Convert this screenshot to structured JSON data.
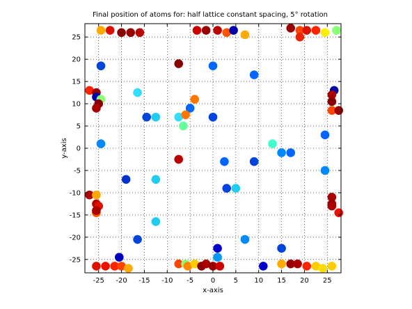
{
  "chart_data": {
    "type": "scatter",
    "title": "Final position of atoms for: half lattice constant spacing, 5° rotation",
    "xlabel": "x-axis",
    "ylabel": "y-axis",
    "xlim": [
      -28,
      28
    ],
    "ylim": [
      -28,
      28
    ],
    "x_ticks": [
      -25,
      -20,
      -15,
      -10,
      -5,
      0,
      5,
      10,
      15,
      20,
      25
    ],
    "y_ticks": [
      -25,
      -20,
      -15,
      -10,
      -5,
      0,
      5,
      10,
      15,
      20,
      25
    ],
    "x_tick_labels": [
      "-25",
      "-20",
      "-15",
      "-10",
      "-5",
      "0",
      "5",
      "10",
      "15",
      "20",
      "25"
    ],
    "y_tick_labels": [
      "-25",
      "-20",
      "-15",
      "-10",
      "-5",
      "0",
      "5",
      "10",
      "15",
      "20",
      "25"
    ],
    "grid": true,
    "grid_style": "dotted",
    "marker": "filled-circle",
    "colormap": "jet",
    "points": [
      {
        "x": -24.5,
        "y": 26.5,
        "color": "#ffaa00"
      },
      {
        "x": -22.5,
        "y": 26.5,
        "color": "#dd1100"
      },
      {
        "x": -20.0,
        "y": 26.0,
        "color": "#880000"
      },
      {
        "x": -18.0,
        "y": 26.0,
        "color": "#990000"
      },
      {
        "x": -16.0,
        "y": 26.0,
        "color": "#bb0000"
      },
      {
        "x": -3.5,
        "y": 26.5,
        "color": "#cc0000"
      },
      {
        "x": -1.5,
        "y": 26.5,
        "color": "#990000"
      },
      {
        "x": 1.0,
        "y": 26.5,
        "color": "#bb0000"
      },
      {
        "x": 3.0,
        "y": 26.0,
        "color": "#ff5500"
      },
      {
        "x": 4.5,
        "y": 26.5,
        "color": "#0000aa"
      },
      {
        "x": 7.0,
        "y": 25.5,
        "color": "#ffaa00"
      },
      {
        "x": 17.0,
        "y": 27.0,
        "color": "#990000"
      },
      {
        "x": 19.0,
        "y": 26.5,
        "color": "#ff4400"
      },
      {
        "x": 20.5,
        "y": 26.5,
        "color": "#dd1100"
      },
      {
        "x": 22.5,
        "y": 26.5,
        "color": "#ff2200"
      },
      {
        "x": 24.5,
        "y": 26.0,
        "color": "#ffee00"
      },
      {
        "x": 27.0,
        "y": 26.5,
        "color": "#88ff77"
      },
      {
        "x": 19.0,
        "y": 25.0,
        "color": "#ee2200"
      },
      {
        "x": -24.5,
        "y": 18.5,
        "color": "#0044dd"
      },
      {
        "x": -7.5,
        "y": 19.0,
        "color": "#880000"
      },
      {
        "x": 0.0,
        "y": 18.5,
        "color": "#0066ff"
      },
      {
        "x": 9.0,
        "y": 16.5,
        "color": "#0066ff"
      },
      {
        "x": -27.0,
        "y": 13.0,
        "color": "#ff2200"
      },
      {
        "x": -25.5,
        "y": 12.5,
        "color": "#990000"
      },
      {
        "x": -25.5,
        "y": 11.5,
        "color": "#0000aa"
      },
      {
        "x": -24.5,
        "y": 11.0,
        "color": "#88ff77"
      },
      {
        "x": -25.0,
        "y": 10.0,
        "color": "#880000"
      },
      {
        "x": -25.5,
        "y": 9.0,
        "color": "#aa0000"
      },
      {
        "x": -16.5,
        "y": 12.5,
        "color": "#33ddff"
      },
      {
        "x": -4.0,
        "y": 11.0,
        "color": "#ff7700"
      },
      {
        "x": -5.0,
        "y": 9.0,
        "color": "#0066ff"
      },
      {
        "x": -14.5,
        "y": 7.0,
        "color": "#0044dd"
      },
      {
        "x": -12.5,
        "y": 7.0,
        "color": "#22ccee"
      },
      {
        "x": -7.5,
        "y": 7.0,
        "color": "#33ddff"
      },
      {
        "x": -6.0,
        "y": 7.5,
        "color": "#ff7700"
      },
      {
        "x": -6.5,
        "y": 5.0,
        "color": "#66ff99"
      },
      {
        "x": 0.0,
        "y": 7.0,
        "color": "#0044dd"
      },
      {
        "x": 26.5,
        "y": 13.0,
        "color": "#0000aa"
      },
      {
        "x": 26.0,
        "y": 12.0,
        "color": "#aa0000"
      },
      {
        "x": 26.0,
        "y": 10.5,
        "color": "#880000"
      },
      {
        "x": 26.0,
        "y": 8.5,
        "color": "#ff4400"
      },
      {
        "x": 27.5,
        "y": 8.5,
        "color": "#990000"
      },
      {
        "x": -24.5,
        "y": 1.0,
        "color": "#0088ff"
      },
      {
        "x": 13.0,
        "y": 1.0,
        "color": "#44ffcc"
      },
      {
        "x": 15.0,
        "y": -1.0,
        "color": "#0088ff"
      },
      {
        "x": 17.0,
        "y": -1.0,
        "color": "#0066ff"
      },
      {
        "x": 24.5,
        "y": 3.0,
        "color": "#0066ff"
      },
      {
        "x": -7.5,
        "y": -2.5,
        "color": "#bb0000"
      },
      {
        "x": 2.5,
        "y": -3.0,
        "color": "#0066ff"
      },
      {
        "x": 9.0,
        "y": -3.0,
        "color": "#0044dd"
      },
      {
        "x": 24.5,
        "y": -5.0,
        "color": "#0088ff"
      },
      {
        "x": -19.0,
        "y": -7.0,
        "color": "#0033cc"
      },
      {
        "x": -12.5,
        "y": -7.0,
        "color": "#22ccee"
      },
      {
        "x": 3.0,
        "y": -9.0,
        "color": "#0044dd"
      },
      {
        "x": 5.0,
        "y": -9.0,
        "color": "#22ccee"
      },
      {
        "x": -27.0,
        "y": -10.5,
        "color": "#aa0000"
      },
      {
        "x": -25.5,
        "y": -10.5,
        "color": "#ffaa00"
      },
      {
        "x": -25.5,
        "y": -12.5,
        "color": "#bb0000"
      },
      {
        "x": -25.0,
        "y": -13.0,
        "color": "#dd1100"
      },
      {
        "x": -25.5,
        "y": -14.5,
        "color": "#ff5500"
      },
      {
        "x": -25.5,
        "y": -14.0,
        "color": "#aa0000"
      },
      {
        "x": 26.0,
        "y": -11.0,
        "color": "#aa0000"
      },
      {
        "x": 26.0,
        "y": -12.5,
        "color": "#990000"
      },
      {
        "x": 26.0,
        "y": -13.0,
        "color": "#aa0000"
      },
      {
        "x": 27.5,
        "y": -14.5,
        "color": "#ee1100"
      },
      {
        "x": -12.5,
        "y": -16.5,
        "color": "#22ccee"
      },
      {
        "x": -16.5,
        "y": -20.5,
        "color": "#0044dd"
      },
      {
        "x": 7.0,
        "y": -20.5,
        "color": "#0088ff"
      },
      {
        "x": 1.0,
        "y": -22.5,
        "color": "#0000cc"
      },
      {
        "x": 15.0,
        "y": -22.5,
        "color": "#0044dd"
      },
      {
        "x": -20.5,
        "y": -24.5,
        "color": "#0000bb"
      },
      {
        "x": 1.0,
        "y": -24.5,
        "color": "#0099ff"
      },
      {
        "x": -25.5,
        "y": -26.5,
        "color": "#dd1100"
      },
      {
        "x": -23.5,
        "y": -26.5,
        "color": "#ee1100"
      },
      {
        "x": -21.5,
        "y": -26.5,
        "color": "#ff2200"
      },
      {
        "x": -20.0,
        "y": -26.5,
        "color": "#ff4400"
      },
      {
        "x": -18.5,
        "y": -27.0,
        "color": "#ffaa00"
      },
      {
        "x": -7.5,
        "y": -26.0,
        "color": "#ff4400"
      },
      {
        "x": -6.0,
        "y": -26.0,
        "color": "#88ff77"
      },
      {
        "x": -5.5,
        "y": -26.5,
        "color": "#ff8800"
      },
      {
        "x": -4.0,
        "y": -26.0,
        "color": "#ffcc00"
      },
      {
        "x": -2.5,
        "y": -26.5,
        "color": "#880000"
      },
      {
        "x": -1.5,
        "y": -26.0,
        "color": "#aa0000"
      },
      {
        "x": 0.0,
        "y": -26.5,
        "color": "#990000"
      },
      {
        "x": 1.5,
        "y": -26.5,
        "color": "#cc0000"
      },
      {
        "x": 11.0,
        "y": -26.5,
        "color": "#0000cc"
      },
      {
        "x": 15.0,
        "y": -26.0,
        "color": "#ffaa00"
      },
      {
        "x": 17.0,
        "y": -26.0,
        "color": "#990000"
      },
      {
        "x": 18.5,
        "y": -26.0,
        "color": "#aa0000"
      },
      {
        "x": 20.5,
        "y": -26.5,
        "color": "#ff2200"
      },
      {
        "x": 22.5,
        "y": -26.5,
        "color": "#ffcc00"
      },
      {
        "x": 24.0,
        "y": -27.0,
        "color": "#ffdd00"
      },
      {
        "x": 26.0,
        "y": -26.5,
        "color": "#ffcc00"
      }
    ]
  }
}
